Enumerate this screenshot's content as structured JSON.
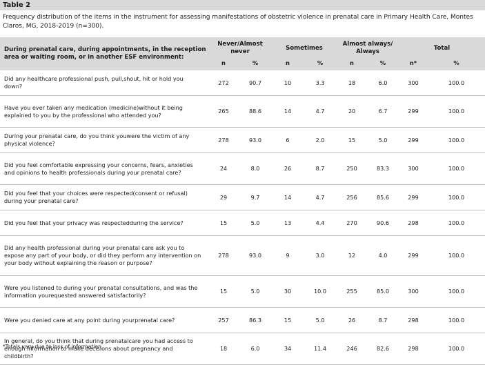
{
  "table_label": "Table 2",
  "caption": "Frequency distribution of the items in the instrument for assessing manifestations of obstetric violence in prenatal care in Primary Health Care, Montes Claros, MG, 2018-2019 (n=300).",
  "header": {
    "question": "During prenatal care, during appointments, in the reception area or waiting room, or in another ESF environment:",
    "groups": [
      "Never/Almost never",
      "Sometimes",
      "Almost always/ Always",
      "Total"
    ],
    "sub": [
      "n",
      "%",
      "n",
      "%",
      "n",
      "%",
      "n*",
      "%"
    ]
  },
  "rows": [
    {
      "question": "Did any healthcare professional push, pull,shout, hit or hold you down?",
      "values": [
        "272",
        "90.7",
        "10",
        "3.3",
        "18",
        "6.0",
        "300",
        "100.0"
      ]
    },
    {
      "question": "Have you ever taken any medication (medicine)without it being explained to you by the professional who attended you?",
      "values": [
        "265",
        "88.6",
        "14",
        "4.7",
        "20",
        "6.7",
        "299",
        "100.0"
      ]
    },
    {
      "question": "During your prenatal care, do you think youwere the victim of any physical violence?",
      "values": [
        "278",
        "93.0",
        "6",
        "2.0",
        "15",
        "5.0",
        "299",
        "100.0"
      ]
    },
    {
      "question": "Did you feel comfortable expressing your concerns, fears, anxieties and opinions to health professionals during your prenatal care?",
      "values": [
        "24",
        "8.0",
        "26",
        "8.7",
        "250",
        "83.3",
        "300",
        "100.0"
      ]
    },
    {
      "question": "Did you feel that your choices were respected(consent or refusal) during your prenatal care?",
      "values": [
        "29",
        "9.7",
        "14",
        "4.7",
        "256",
        "85.6",
        "299",
        "100.0"
      ]
    },
    {
      "question": "Did you feel that your privacy was respectedduring the service?",
      "values": [
        "15",
        "5.0",
        "13",
        "4.4",
        "270",
        "90.6",
        "298",
        "100.0"
      ]
    },
    {
      "question": "Did any health professional during your prenatal care ask you to expose any part of your body, or did they perform any intervention on your body without explaining the reason or purpose?",
      "values": [
        "278",
        "93.0",
        "9",
        "3.0",
        "12",
        "4.0",
        "299",
        "100.0"
      ]
    },
    {
      "question": "Were you listened to during your prenatal consultations, and was the information yourequested answered satisfactorily?",
      "values": [
        "15",
        "5.0",
        "30",
        "10.0",
        "255",
        "85.0",
        "300",
        "100.0"
      ]
    },
    {
      "question": "Were you denied care at any point during yourprenatal care?",
      "values": [
        "257",
        "86.3",
        "15",
        "5.0",
        "26",
        "8.7",
        "298",
        "100.0"
      ]
    },
    {
      "question": "In general, do you think that during prenatalcare you had access to enough information to make decisions about pregnancy and childbirth?",
      "values": [
        "18",
        "6.0",
        "34",
        "11.4",
        "246",
        "82.6",
        "298",
        "100.0"
      ]
    }
  ],
  "footnote": "*Totals vary due to loss of information."
}
